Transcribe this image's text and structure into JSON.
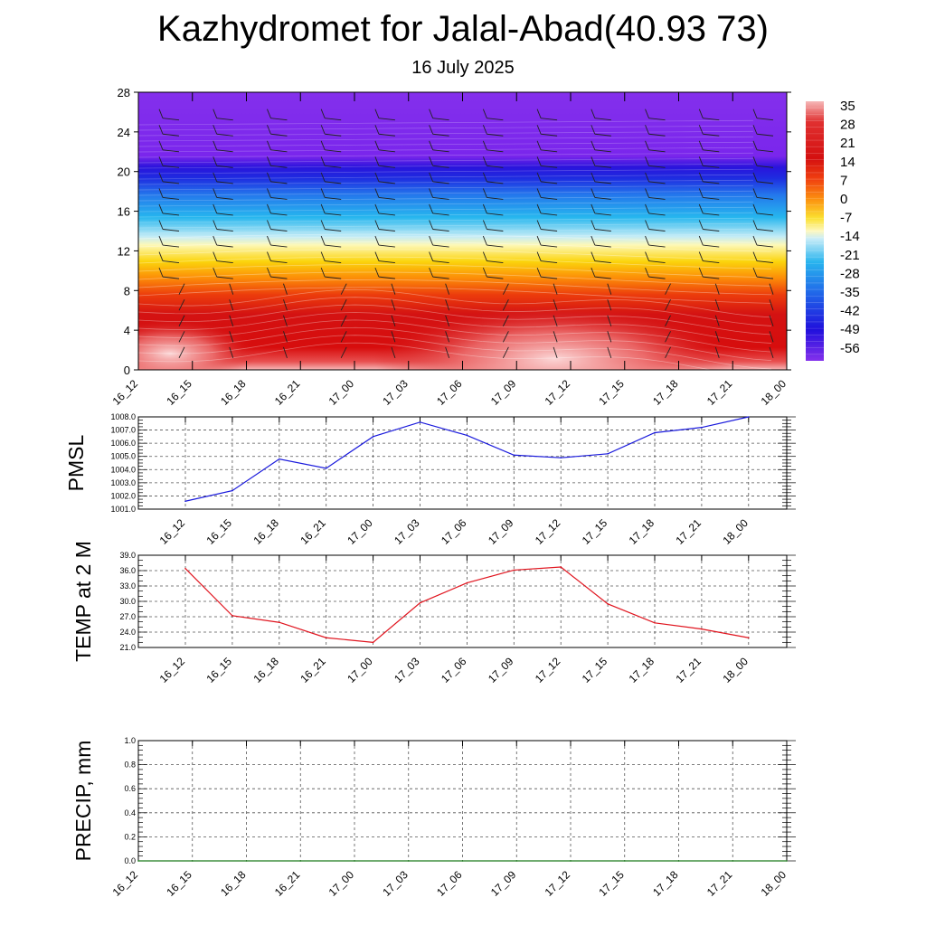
{
  "title": "Kazhydromet for Jalal-Abad(40.93 73)",
  "subtitle": "16 July 2025",
  "time_labels": [
    "16_12",
    "16_15",
    "16_18",
    "16_21",
    "17_00",
    "17_03",
    "17_06",
    "17_09",
    "17_12",
    "17_15",
    "17_18",
    "17_21",
    "18_00"
  ],
  "chart_data": [
    {
      "type": "heatmap",
      "name": "cross-section",
      "x": [
        "16_12",
        "16_15",
        "16_18",
        "16_21",
        "17_00",
        "17_03",
        "17_06",
        "17_09",
        "17_12",
        "17_15",
        "17_18",
        "17_21",
        "18_00"
      ],
      "y_ticks": [
        0,
        4,
        8,
        12,
        16,
        20,
        24,
        28
      ],
      "ylim": [
        0,
        28
      ],
      "colorbar_labels": [
        "35",
        "28",
        "21",
        "14",
        "7",
        "0",
        "-7",
        "-14",
        "-21",
        "-28",
        "-35",
        "-42",
        "-49",
        "-56"
      ],
      "wind_barbs": true
    },
    {
      "type": "line",
      "ylabel": "PMSL",
      "x": [
        "16_12",
        "16_15",
        "16_18",
        "16_21",
        "17_00",
        "17_03",
        "17_06",
        "17_09",
        "17_12",
        "17_15",
        "17_18",
        "17_21",
        "18_00"
      ],
      "values": [
        1001.6,
        1002.4,
        1004.8,
        1004.1,
        1006.5,
        1007.6,
        1006.6,
        1005.1,
        1004.9,
        1005.2,
        1006.8,
        1007.2,
        1008.0
      ],
      "ylim": [
        1001.0,
        1008.0
      ],
      "y_ticks": [
        "1001.0",
        "1002.0",
        "1003.0",
        "1004.0",
        "1005.0",
        "1006.0",
        "1007.0",
        "1008.0"
      ],
      "color": "#1a1adc"
    },
    {
      "type": "line",
      "ylabel": "TEMP at 2 M",
      "x": [
        "16_12",
        "16_15",
        "16_18",
        "16_21",
        "17_00",
        "17_03",
        "17_06",
        "17_09",
        "17_12",
        "17_15",
        "17_18",
        "17_21",
        "18_00"
      ],
      "values": [
        36.4,
        27.2,
        25.9,
        22.9,
        22.0,
        29.7,
        33.6,
        36.1,
        36.7,
        29.5,
        25.8,
        24.6,
        22.9
      ],
      "ylim": [
        21.0,
        39.0
      ],
      "y_ticks": [
        "21.0",
        "24.0",
        "27.0",
        "30.0",
        "33.0",
        "36.0",
        "39.0"
      ],
      "color": "#e0141e"
    },
    {
      "type": "line",
      "ylabel": "PRECIP, mm",
      "x": [
        "16_12",
        "16_15",
        "16_18",
        "16_21",
        "17_00",
        "17_03",
        "17_06",
        "17_09",
        "17_12",
        "17_15",
        "17_18",
        "17_21",
        "18_00"
      ],
      "values": [
        0,
        0,
        0,
        0,
        0,
        0,
        0,
        0,
        0,
        0,
        0,
        0,
        0
      ],
      "ylim": [
        0.0,
        1.0
      ],
      "y_ticks": [
        "0.0",
        "0.2",
        "0.4",
        "0.6",
        "0.8",
        "1.0"
      ],
      "color": "#1a7a1a"
    }
  ]
}
